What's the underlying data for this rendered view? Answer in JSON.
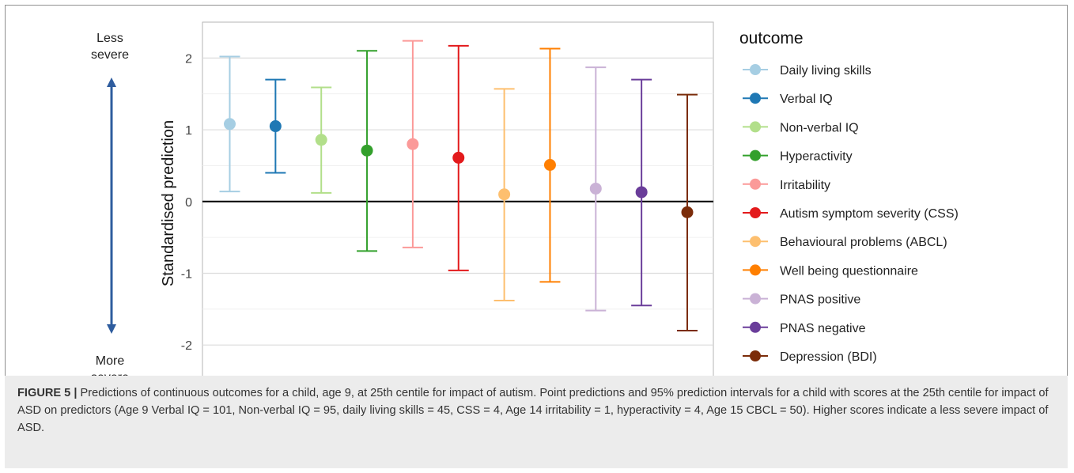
{
  "side_labels": {
    "top_line1": "Less",
    "top_line2": "severe",
    "bottom_line1": "More",
    "bottom_line2": "severe"
  },
  "arrow_color": "#2e5c9e",
  "chart_data": {
    "type": "errorbar",
    "ylabel": "Standardised prediction",
    "ylim": [
      -2.45,
      2.5
    ],
    "yticks": [
      2,
      1,
      0,
      -1,
      -2
    ],
    "ytick_labels": [
      "2",
      "1",
      "0",
      "-1",
      "-2"
    ],
    "reference_line": 0,
    "grid": true,
    "legend_title": "outcome",
    "legend_position": "right",
    "series": [
      {
        "name": "Daily living skills",
        "color": "#a6cee3",
        "value": 1.08,
        "lower": 0.14,
        "upper": 2.02
      },
      {
        "name": "Verbal IQ",
        "color": "#1f78b4",
        "value": 1.05,
        "lower": 0.4,
        "upper": 1.7
      },
      {
        "name": "Non-verbal IQ",
        "color": "#b2df8a",
        "value": 0.86,
        "lower": 0.12,
        "upper": 1.59
      },
      {
        "name": "Hyperactivity",
        "color": "#33a02c",
        "value": 0.71,
        "lower": -0.69,
        "upper": 2.1
      },
      {
        "name": "Irritability",
        "color": "#fb9a99",
        "value": 0.8,
        "lower": -0.64,
        "upper": 2.24
      },
      {
        "name": "Autism symptom severity (CSS)",
        "color": "#e31a1c",
        "value": 0.61,
        "lower": -0.96,
        "upper": 2.17
      },
      {
        "name": "Behavioural problems (ABCL)",
        "color": "#fdbf6f",
        "value": 0.1,
        "lower": -1.38,
        "upper": 1.57
      },
      {
        "name": "Well being questionnaire",
        "color": "#ff7f00",
        "value": 0.51,
        "lower": -1.12,
        "upper": 2.13
      },
      {
        "name": "PNAS positive",
        "color": "#cab2d6",
        "value": 0.18,
        "lower": -1.52,
        "upper": 1.87
      },
      {
        "name": "PNAS negative",
        "color": "#6a3d9a",
        "value": 0.13,
        "lower": -1.45,
        "upper": 1.7
      },
      {
        "name": "Depression (BDI)",
        "color": "#7b2c0a",
        "value": -0.15,
        "lower": -1.8,
        "upper": 1.49
      }
    ]
  },
  "caption": {
    "label": "FIGURE 5 |",
    "text": " Predictions of continuous outcomes for a child, age 9, at 25th centile for impact of autism. Point predictions and 95% prediction intervals for a child with scores at the 25th centile for impact of ASD on predictors (Age 9 Verbal IQ = 101, Non-verbal IQ = 95, daily living skills = 45, CSS = 4, Age 14 irritability = 1, hyperactivity = 4, Age 15 CBCL = 50). Higher scores indicate a less severe impact of ASD."
  }
}
